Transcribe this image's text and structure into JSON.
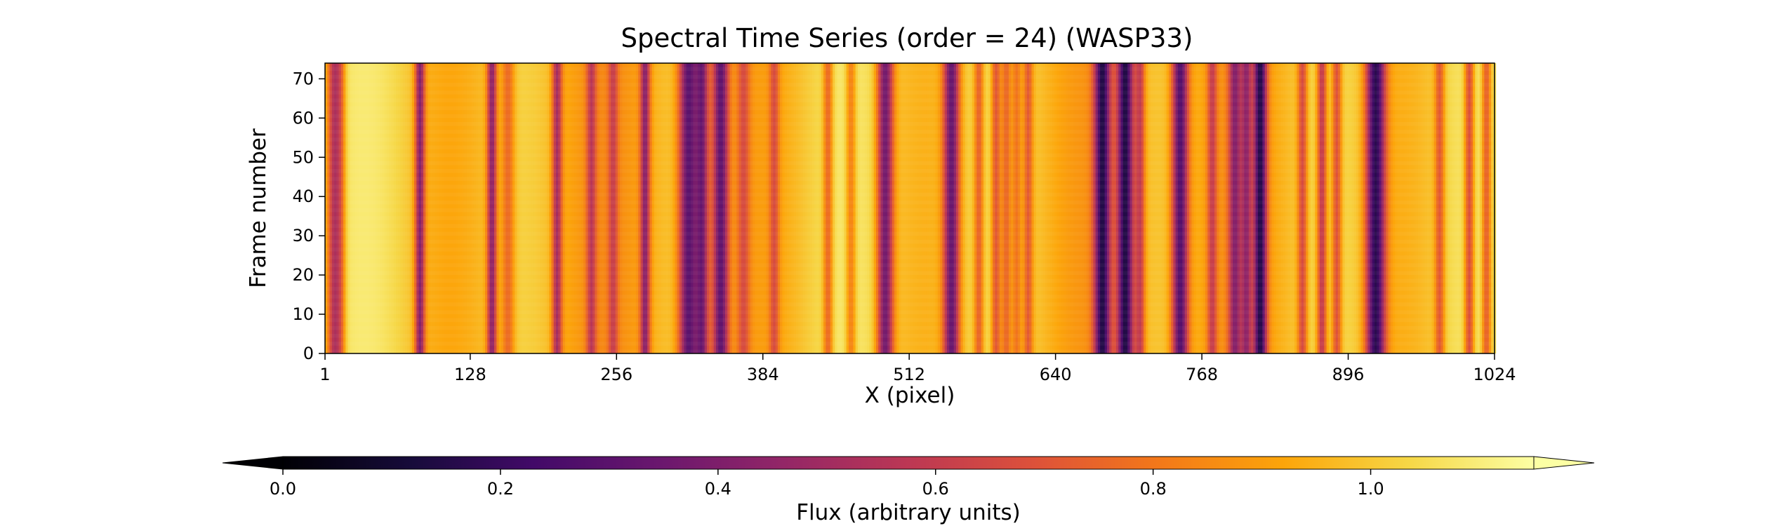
{
  "chart_data": {
    "type": "heatmap",
    "title": "Spectral Time Series (order = 24) (WASP33)",
    "xlabel": "X (pixel)",
    "ylabel": "Frame number",
    "xlim": [
      1,
      1024
    ],
    "ylim": [
      0,
      74
    ],
    "x_ticks": [
      1,
      128,
      256,
      384,
      512,
      640,
      768,
      896,
      1024
    ],
    "y_ticks": [
      0,
      10,
      20,
      30,
      40,
      50,
      60,
      70
    ],
    "colormap": "inferno",
    "colorbar": {
      "label": "Flux (arbitrary units)",
      "orientation": "horizontal",
      "position": "bottom",
      "extend": "both",
      "range": [
        0.0,
        1.15
      ],
      "ticks": [
        0.0,
        0.2,
        0.4,
        0.6,
        0.8,
        1.0
      ],
      "tick_labels": [
        "0.0",
        "0.2",
        "0.4",
        "0.6",
        "0.8",
        "1.0"
      ]
    },
    "baseline_flux": 0.97,
    "absorption_lines": [
      {
        "x": 8,
        "depth": 0.48,
        "width": 4
      },
      {
        "x": 14,
        "depth": 0.22,
        "width": 3
      },
      {
        "x": 83,
        "depth": 0.55,
        "width": 3
      },
      {
        "x": 146,
        "depth": 0.55,
        "width": 3
      },
      {
        "x": 160,
        "depth": 0.25,
        "width": 4
      },
      {
        "x": 203,
        "depth": 0.45,
        "width": 3
      },
      {
        "x": 233,
        "depth": 0.3,
        "width": 3
      },
      {
        "x": 252,
        "depth": 0.25,
        "width": 3
      },
      {
        "x": 280,
        "depth": 0.5,
        "width": 3
      },
      {
        "x": 318,
        "depth": 0.7,
        "width": 6
      },
      {
        "x": 330,
        "depth": 0.55,
        "width": 4
      },
      {
        "x": 346,
        "depth": 0.65,
        "width": 5
      },
      {
        "x": 366,
        "depth": 0.25,
        "width": 4
      },
      {
        "x": 393,
        "depth": 0.25,
        "width": 3
      },
      {
        "x": 440,
        "depth": 0.3,
        "width": 3
      },
      {
        "x": 460,
        "depth": 0.25,
        "width": 3
      },
      {
        "x": 490,
        "depth": 0.65,
        "width": 5
      },
      {
        "x": 548,
        "depth": 0.65,
        "width": 5
      },
      {
        "x": 572,
        "depth": 0.3,
        "width": 3
      },
      {
        "x": 587,
        "depth": 0.35,
        "width": 3
      },
      {
        "x": 596,
        "depth": 0.3,
        "width": 3
      },
      {
        "x": 605,
        "depth": 0.25,
        "width": 3
      },
      {
        "x": 615,
        "depth": 0.3,
        "width": 3
      },
      {
        "x": 680,
        "depth": 0.75,
        "width": 5
      },
      {
        "x": 700,
        "depth": 0.8,
        "width": 5
      },
      {
        "x": 713,
        "depth": 0.35,
        "width": 3
      },
      {
        "x": 748,
        "depth": 0.7,
        "width": 5
      },
      {
        "x": 776,
        "depth": 0.3,
        "width": 3
      },
      {
        "x": 796,
        "depth": 0.45,
        "width": 4
      },
      {
        "x": 806,
        "depth": 0.4,
        "width": 3
      },
      {
        "x": 818,
        "depth": 0.75,
        "width": 4
      },
      {
        "x": 855,
        "depth": 0.35,
        "width": 3
      },
      {
        "x": 872,
        "depth": 0.45,
        "width": 3
      },
      {
        "x": 885,
        "depth": 0.35,
        "width": 3
      },
      {
        "x": 919,
        "depth": 0.8,
        "width": 6
      },
      {
        "x": 975,
        "depth": 0.3,
        "width": 3
      },
      {
        "x": 1001,
        "depth": 0.4,
        "width": 3
      },
      {
        "x": 1016,
        "depth": 0.35,
        "width": 3
      }
    ]
  }
}
